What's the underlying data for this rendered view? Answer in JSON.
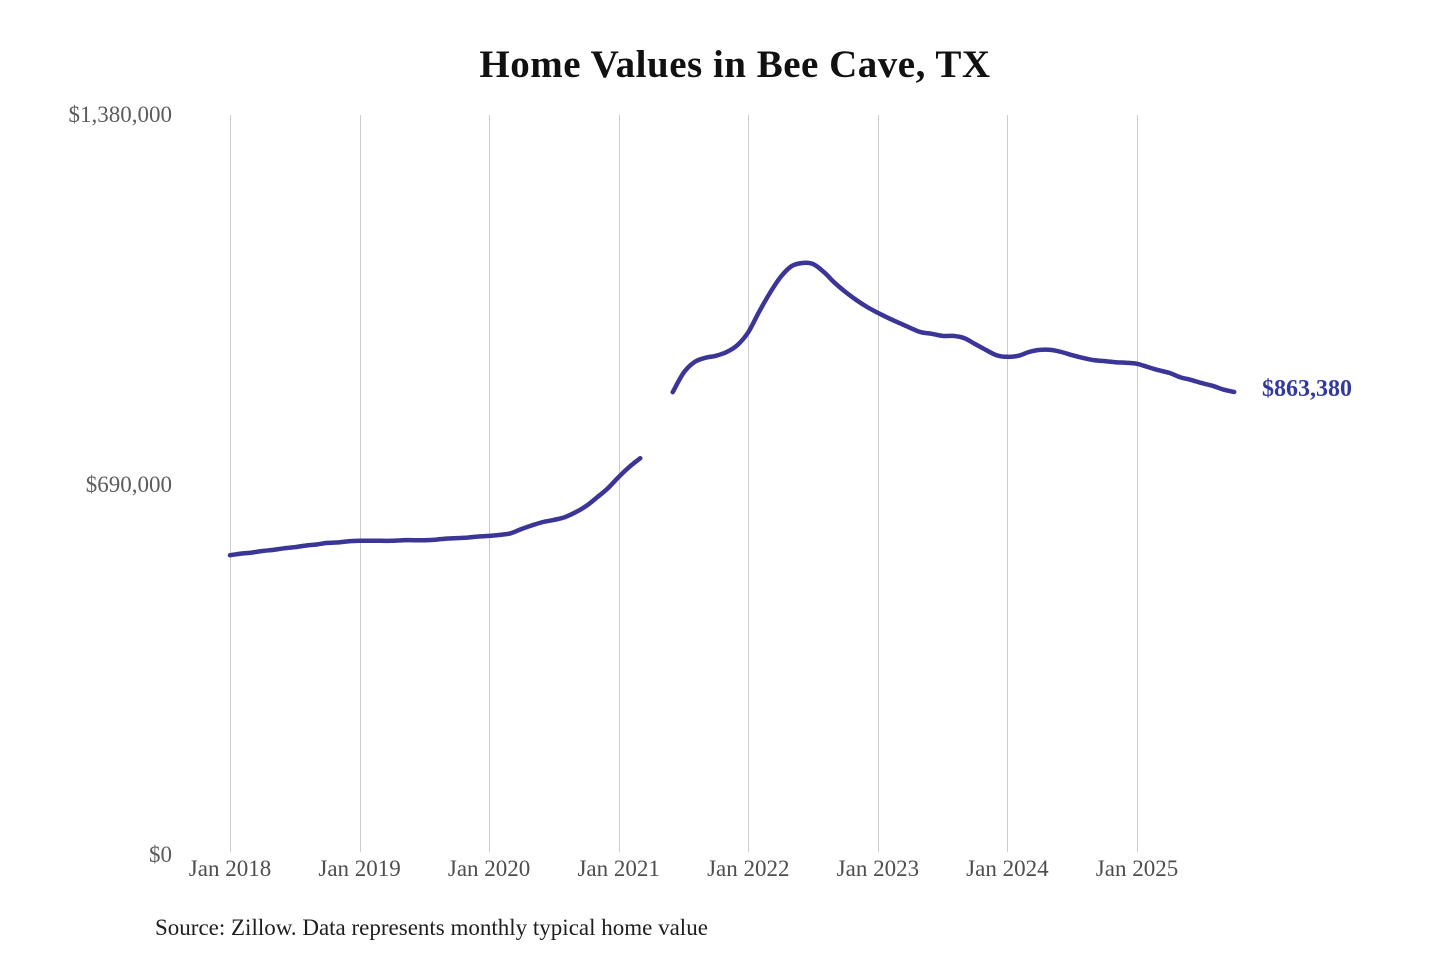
{
  "chart_data": {
    "type": "line",
    "title": "Home Values in Bee Cave, TX",
    "end_label": "$863,380",
    "final_value": 863380,
    "source_note": "Source: Zillow. Data represents monthly typical home value",
    "legend": "none",
    "grid": "vertical-only",
    "y_axis": {
      "range": [
        0,
        1380000
      ],
      "ticks": [
        {
          "label": "$1,380,000",
          "value": 1380000
        },
        {
          "label": "$690,000",
          "value": 690000
        },
        {
          "label": "$0",
          "value": 0
        }
      ]
    },
    "x_axis": {
      "ticks": [
        "Jan 2018",
        "Jan 2019",
        "Jan 2020",
        "Jan 2021",
        "Jan 2022",
        "Jan 2023",
        "Jan 2024",
        "Jan 2025"
      ],
      "range_months": [
        "2018-01",
        "2025-10"
      ],
      "gap_months": [
        "2021-04",
        "2021-05"
      ]
    },
    "series": [
      {
        "name": "Monthly typical home value",
        "points": [
          [
            "2018-01",
            559000
          ],
          [
            "2018-02",
            562000
          ],
          [
            "2018-03",
            564000
          ],
          [
            "2018-04",
            567000
          ],
          [
            "2018-05",
            569000
          ],
          [
            "2018-06",
            572000
          ],
          [
            "2018-07",
            574000
          ],
          [
            "2018-08",
            577000
          ],
          [
            "2018-09",
            579000
          ],
          [
            "2018-10",
            582000
          ],
          [
            "2018-11",
            583000
          ],
          [
            "2018-12",
            585000
          ],
          [
            "2019-01",
            586000
          ],
          [
            "2019-02",
            586000
          ],
          [
            "2019-03",
            586000
          ],
          [
            "2019-04",
            586000
          ],
          [
            "2019-05",
            587000
          ],
          [
            "2019-06",
            587000
          ],
          [
            "2019-07",
            587000
          ],
          [
            "2019-08",
            588000
          ],
          [
            "2019-09",
            590000
          ],
          [
            "2019-10",
            591000
          ],
          [
            "2019-11",
            592000
          ],
          [
            "2019-12",
            594000
          ],
          [
            "2020-01",
            595000
          ],
          [
            "2020-02",
            597000
          ],
          [
            "2020-03",
            600000
          ],
          [
            "2020-04",
            608000
          ],
          [
            "2020-05",
            615000
          ],
          [
            "2020-06",
            621000
          ],
          [
            "2020-07",
            625000
          ],
          [
            "2020-08",
            630000
          ],
          [
            "2020-09",
            639000
          ],
          [
            "2020-10",
            651000
          ],
          [
            "2020-11",
            667000
          ],
          [
            "2020-12",
            684000
          ],
          [
            "2021-01",
            705000
          ],
          [
            "2021-02",
            724000
          ],
          [
            "2021-03",
            740000
          ],
          [
            "2021-04",
            null
          ],
          [
            "2021-05",
            null
          ],
          [
            "2021-06",
            863000
          ],
          [
            "2021-07",
            899000
          ],
          [
            "2021-08",
            919000
          ],
          [
            "2021-09",
            927000
          ],
          [
            "2021-10",
            931000
          ],
          [
            "2021-11",
            938000
          ],
          [
            "2021-12",
            951000
          ],
          [
            "2022-01",
            975000
          ],
          [
            "2022-02",
            1013000
          ],
          [
            "2022-03",
            1048000
          ],
          [
            "2022-04",
            1078000
          ],
          [
            "2022-05",
            1098000
          ],
          [
            "2022-06",
            1104000
          ],
          [
            "2022-07",
            1102000
          ],
          [
            "2022-08",
            1087000
          ],
          [
            "2022-09",
            1067000
          ],
          [
            "2022-10",
            1050000
          ],
          [
            "2022-11",
            1035000
          ],
          [
            "2022-12",
            1022000
          ],
          [
            "2023-01",
            1011000
          ],
          [
            "2023-02",
            1001000
          ],
          [
            "2023-03",
            992000
          ],
          [
            "2023-04",
            983000
          ],
          [
            "2023-05",
            975000
          ],
          [
            "2023-06",
            972000
          ],
          [
            "2023-07",
            968000
          ],
          [
            "2023-08",
            968000
          ],
          [
            "2023-09",
            964000
          ],
          [
            "2023-10",
            953000
          ],
          [
            "2023-11",
            942000
          ],
          [
            "2023-12",
            932000
          ],
          [
            "2024-01",
            929000
          ],
          [
            "2024-02",
            931000
          ],
          [
            "2024-03",
            938000
          ],
          [
            "2024-04",
            942000
          ],
          [
            "2024-05",
            942000
          ],
          [
            "2024-06",
            938000
          ],
          [
            "2024-07",
            932000
          ],
          [
            "2024-08",
            927000
          ],
          [
            "2024-09",
            923000
          ],
          [
            "2024-10",
            921000
          ],
          [
            "2024-11",
            919000
          ],
          [
            "2024-12",
            918000
          ],
          [
            "2025-01",
            916000
          ],
          [
            "2025-02",
            910000
          ],
          [
            "2025-03",
            904000
          ],
          [
            "2025-04",
            899000
          ],
          [
            "2025-05",
            891000
          ],
          [
            "2025-06",
            886000
          ],
          [
            "2025-07",
            880000
          ],
          [
            "2025-08",
            875000
          ],
          [
            "2025-09",
            868000
          ],
          [
            "2025-10",
            863380
          ]
        ]
      }
    ],
    "colors": {
      "line": "#3b3597",
      "end_label": "#333a9e",
      "gridline": "#cccccc",
      "axis_text": "#4e4e4e",
      "title_text": "#111111"
    }
  }
}
